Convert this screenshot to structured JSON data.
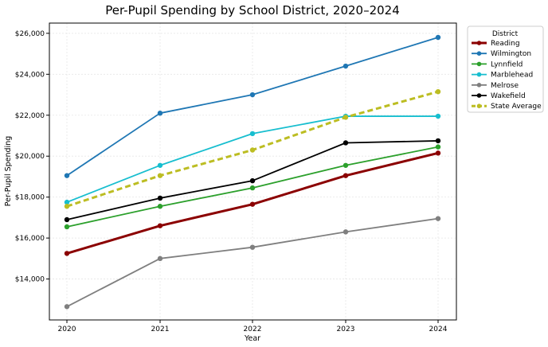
{
  "chart_data": {
    "type": "line",
    "title": "Per-Pupil Spending by School District, 2020–2024",
    "xlabel": "Year",
    "ylabel": "Per-Pupil Spending",
    "x": [
      2020,
      2021,
      2022,
      2023,
      2024
    ],
    "x_tick_labels": [
      "2020",
      "2021",
      "2022",
      "2023",
      "2024"
    ],
    "ylim": [
      12000,
      26500
    ],
    "y_ticks": [
      14000,
      16000,
      18000,
      20000,
      22000,
      24000,
      26000
    ],
    "y_tick_labels": [
      "$14,000",
      "$16,000",
      "$18,000",
      "$20,000",
      "$22,000",
      "$24,000",
      "$26,000"
    ],
    "grid": true,
    "legend_title": "District",
    "legend_position": "right, outside plot",
    "series": [
      {
        "name": "Reading",
        "values": [
          15250,
          16600,
          17650,
          19050,
          20150
        ],
        "color": "#8b0000",
        "style": "solid",
        "bold": true
      },
      {
        "name": "Wilmington",
        "values": [
          19050,
          22100,
          23000,
          24400,
          25800
        ],
        "color": "#1f77b4",
        "style": "solid",
        "bold": false
      },
      {
        "name": "Lynnfield",
        "values": [
          16550,
          17550,
          18450,
          19550,
          20450
        ],
        "color": "#2ca02c",
        "style": "solid",
        "bold": false
      },
      {
        "name": "Marblehead",
        "values": [
          17750,
          19550,
          21100,
          21950,
          21950
        ],
        "color": "#17becf",
        "style": "solid",
        "bold": false
      },
      {
        "name": "Melrose",
        "values": [
          12650,
          15000,
          15550,
          16300,
          16950
        ],
        "color": "#7f7f7f",
        "style": "solid",
        "bold": false
      },
      {
        "name": "Wakefield",
        "values": [
          16900,
          17950,
          18800,
          20650,
          20750
        ],
        "color": "#000000",
        "style": "solid",
        "bold": false
      },
      {
        "name": "State Average",
        "values": [
          17550,
          19050,
          20300,
          21900,
          23150
        ],
        "color": "#bcbd22",
        "style": "dashed",
        "bold": true
      }
    ]
  }
}
